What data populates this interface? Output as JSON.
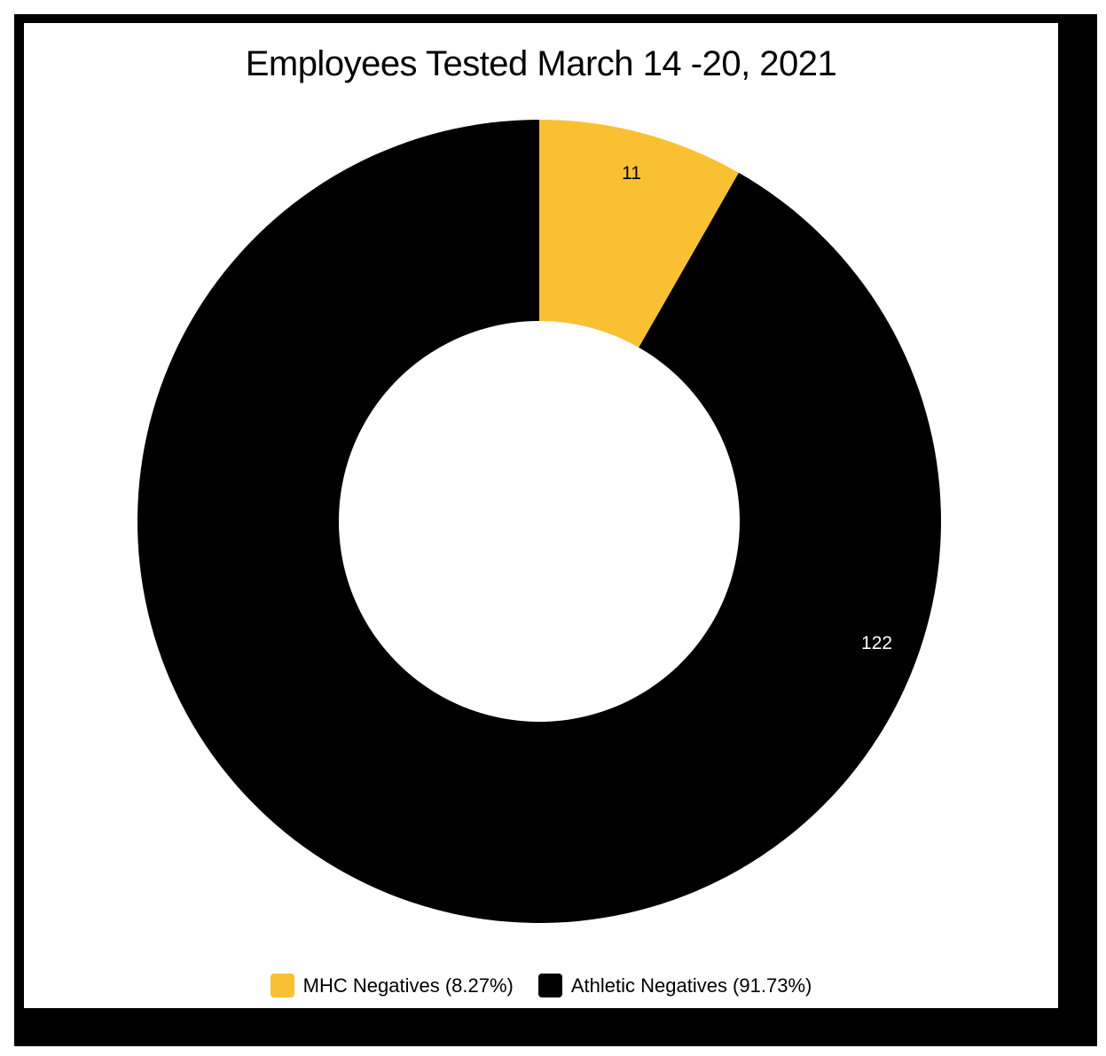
{
  "chart_data": {
    "type": "pie",
    "variant": "donut",
    "title": "Employees Tested March 14 -20, 2021",
    "series": [
      {
        "name": "MHC Negatives",
        "value": 11,
        "data_label": "11",
        "legend_label": "MHC Negatives (8.27%)",
        "percent": 8.27,
        "color": "#F9C132"
      },
      {
        "name": "Athletic Negatives",
        "value": 122,
        "data_label": "122",
        "legend_label": "Athletic Negatives (91.73%)",
        "percent": 91.73,
        "color": "#000000"
      }
    ],
    "legend_position": "bottom",
    "start_angle_degrees": 270,
    "direction": "clockwise"
  },
  "colors": {
    "frame": "#000000",
    "background": "#FFFFFF"
  }
}
